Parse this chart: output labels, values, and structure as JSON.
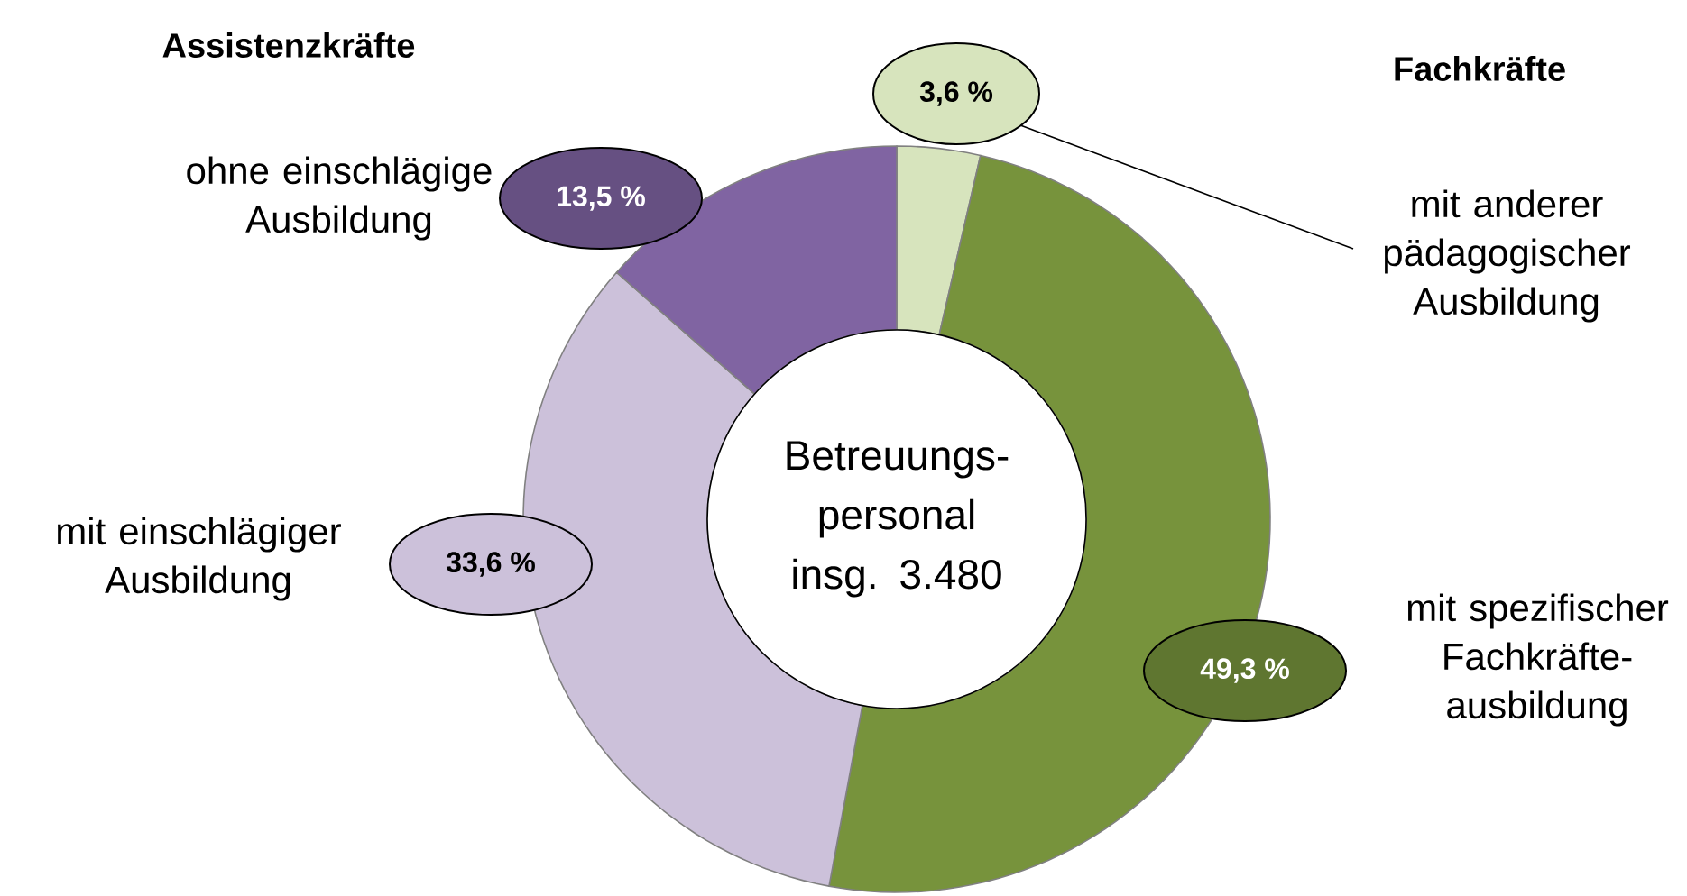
{
  "chart_data": {
    "type": "donut",
    "categories": [
      "mit anderer pädagogischer Ausbildung",
      "mit spezifischer Fachkräfte-ausbildung",
      "mit einschlägiger Ausbildung",
      "ohne einschlägige Ausbildung"
    ],
    "values": [
      3.6,
      49.3,
      33.6,
      13.5
    ],
    "colors": [
      "#d7e4bd",
      "#77933c",
      "#ccc1da",
      "#8064a2"
    ],
    "value_labels": [
      "3,6 %",
      "49,3 %",
      "33,6 %",
      "13,5 %"
    ],
    "annotations": [
      "Assistenzkräfte",
      "Fachkräfte",
      "Betreuungs-personal insg. 3.480"
    ]
  }
}
